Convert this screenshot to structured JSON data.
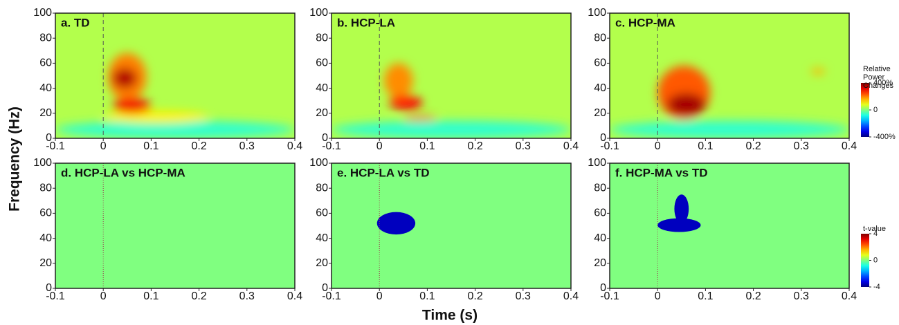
{
  "xlabel": "Time (s)",
  "ylabel": "Frequency (Hz)",
  "chart_data": [
    {
      "type": "heatmap",
      "title": "a. TD",
      "xlim": [
        -0.1,
        0.4
      ],
      "xticks": [
        -0.1,
        0,
        0.1,
        0.2,
        0.3,
        0.4
      ],
      "ylim": [
        0,
        100
      ],
      "yticks": [
        0,
        20,
        40,
        60,
        80,
        100
      ],
      "vline": 0,
      "smooth": true,
      "background": 40,
      "regions": [
        {
          "x": [
            -0.1,
            0.4
          ],
          "y": [
            0,
            14
          ],
          "value": -60
        },
        {
          "x": [
            0.0,
            0.22
          ],
          "y": [
            12,
            22
          ],
          "value": 110
        },
        {
          "x": [
            0.01,
            0.09
          ],
          "y": [
            30,
            68
          ],
          "value": 200
        },
        {
          "x": [
            0.02,
            0.1
          ],
          "y": [
            20,
            32
          ],
          "value": 310
        },
        {
          "x": [
            0.02,
            0.07
          ],
          "y": [
            40,
            56
          ],
          "value": 360
        }
      ]
    },
    {
      "type": "heatmap",
      "title": "b. HCP-LA",
      "xlim": [
        -0.1,
        0.4
      ],
      "xticks": [
        -0.1,
        0,
        0.1,
        0.2,
        0.3,
        0.4
      ],
      "ylim": [
        0,
        100
      ],
      "yticks": [
        0,
        20,
        40,
        60,
        80,
        100
      ],
      "vline": 0,
      "smooth": true,
      "background": 40,
      "regions": [
        {
          "x": [
            -0.1,
            0.4
          ],
          "y": [
            0,
            14
          ],
          "value": -60
        },
        {
          "x": [
            0.01,
            0.07
          ],
          "y": [
            32,
            60
          ],
          "value": 190
        },
        {
          "x": [
            0.02,
            0.09
          ],
          "y": [
            23,
            34
          ],
          "value": 300
        },
        {
          "x": [
            0.05,
            0.12
          ],
          "y": [
            14,
            18
          ],
          "value": 240
        }
      ]
    },
    {
      "type": "heatmap",
      "title": "c. HCP-MA",
      "xlim": [
        -0.1,
        0.4
      ],
      "xticks": [
        -0.1,
        0,
        0.1,
        0.2,
        0.3,
        0.4
      ],
      "ylim": [
        0,
        100
      ],
      "yticks": [
        0,
        20,
        40,
        60,
        80,
        100
      ],
      "vline": 0,
      "smooth": true,
      "background": 40,
      "regions": [
        {
          "x": [
            -0.1,
            0.4
          ],
          "y": [
            0,
            14
          ],
          "value": -60
        },
        {
          "x": [
            0.0,
            0.11
          ],
          "y": [
            15,
            58
          ],
          "value": 230
        },
        {
          "x": [
            0.02,
            0.1
          ],
          "y": [
            18,
            36
          ],
          "value": 370
        },
        {
          "x": [
            0.32,
            0.35
          ],
          "y": [
            51,
            56
          ],
          "value": 160
        }
      ],
      "colorbar": {
        "title": "Relative Power Changes",
        "lim": [
          -400,
          400
        ],
        "ticks": [
          {
            "value": 400,
            "label": "400%"
          },
          0,
          {
            "value": -400,
            "label": "-400%"
          }
        ]
      }
    },
    {
      "type": "heatmap",
      "title": "d. HCP-LA vs HCP-MA",
      "xlim": [
        -0.1,
        0.4
      ],
      "xticks": [
        -0.1,
        0,
        0.1,
        0.2,
        0.3,
        0.4
      ],
      "ylim": [
        0,
        100
      ],
      "yticks": [
        0,
        20,
        40,
        60,
        80,
        100
      ],
      "vline": 0,
      "smooth": false,
      "background": 0,
      "regions": []
    },
    {
      "type": "heatmap",
      "title": "e. HCP-LA vs TD",
      "xlim": [
        -0.1,
        0.4
      ],
      "xticks": [
        -0.1,
        0,
        0.1,
        0.2,
        0.3,
        0.4
      ],
      "ylim": [
        0,
        100
      ],
      "yticks": [
        0,
        20,
        40,
        60,
        80,
        100
      ],
      "vline": 0,
      "smooth": false,
      "background": 0,
      "regions": [
        {
          "x": [
            -0.005,
            0.075
          ],
          "y": [
            43,
            61
          ],
          "value": -3.5
        }
      ]
    },
    {
      "type": "heatmap",
      "title": "f. HCP-MA vs TD",
      "xlim": [
        -0.1,
        0.4
      ],
      "xticks": [
        -0.1,
        0,
        0.1,
        0.2,
        0.3,
        0.4
      ],
      "ylim": [
        0,
        100
      ],
      "yticks": [
        0,
        20,
        40,
        60,
        80,
        100
      ],
      "vline": 0,
      "smooth": false,
      "background": 0,
      "regions": [
        {
          "x": [
            0.0,
            0.09
          ],
          "y": [
            45,
            56
          ],
          "value": -3.5
        },
        {
          "x": [
            0.035,
            0.065
          ],
          "y": [
            52,
            75
          ],
          "value": -3.5
        }
      ],
      "colorbar": {
        "title": "t-value",
        "lim": [
          -4,
          4
        ],
        "ticks": [
          4,
          0,
          -4
        ]
      }
    }
  ]
}
